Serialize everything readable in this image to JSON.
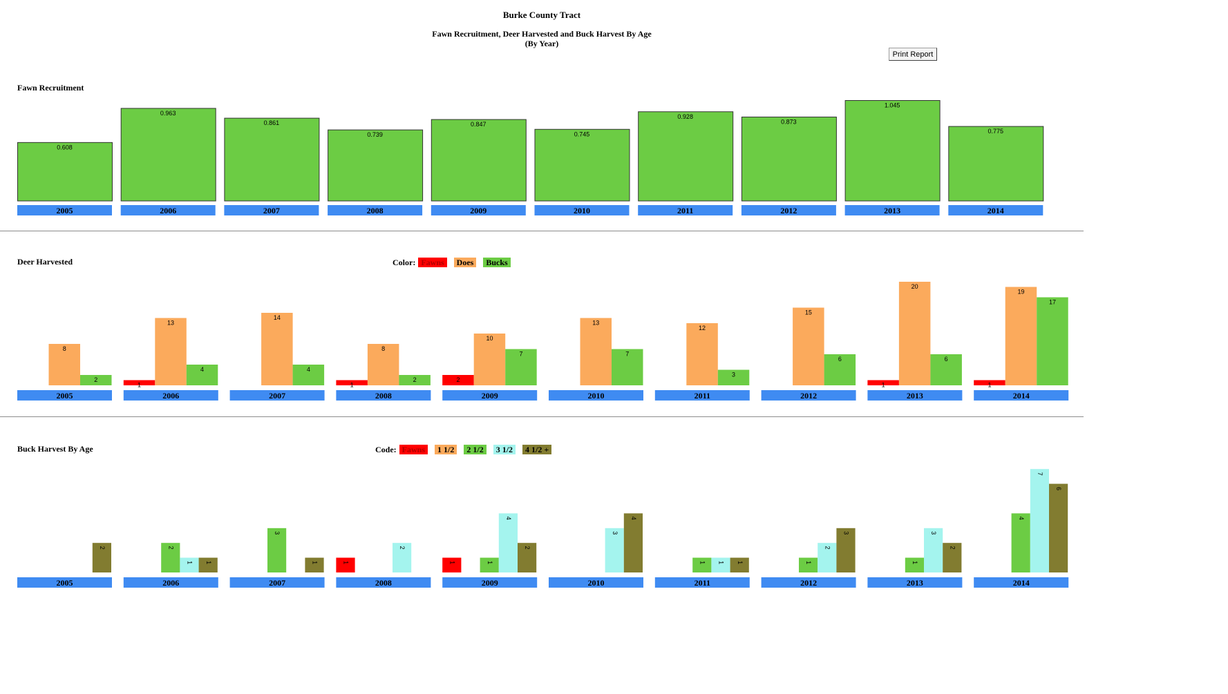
{
  "header": {
    "title": "Burke County Tract",
    "subtitle": "Fawn Recruitment, Deer Harvested and Buck Harvest By Age",
    "subtitle2": "(By Year)",
    "print_label": "Print Report"
  },
  "legends": {
    "harvest": {
      "title": "Color:",
      "items": [
        {
          "label": "Fawns",
          "color": "#ff0000",
          "text_color": "#b00000"
        },
        {
          "label": "Does",
          "color": "#fbaa5c",
          "text_color": "#000000"
        },
        {
          "label": "Bucks",
          "color": "#6ccc44",
          "text_color": "#000000"
        }
      ]
    },
    "age": {
      "title": "Code:",
      "items": [
        {
          "label": "Fawns",
          "color": "#ff0000",
          "text_color": "#b00000"
        },
        {
          "label": "1 1/2",
          "color": "#fbaa5c",
          "text_color": "#000000"
        },
        {
          "label": "2 1/2",
          "color": "#6ccc44",
          "text_color": "#000000"
        },
        {
          "label": "3 1/2",
          "color": "#a4f4ee",
          "text_color": "#000000"
        },
        {
          "label": "4 1/2 +",
          "color": "#827c30",
          "text_color": "#000000"
        }
      ]
    }
  },
  "colors": {
    "fawn_bar": "#6ccc44",
    "year_bar": "#3f8bf2",
    "bar_outline": "#333333"
  },
  "chart_data": [
    {
      "type": "bar",
      "title": "Fawn Recruitment",
      "categories": [
        "2005",
        "2006",
        "2007",
        "2008",
        "2009",
        "2010",
        "2011",
        "2012",
        "2013",
        "2014"
      ],
      "values": [
        0.608,
        0.963,
        0.861,
        0.739,
        0.847,
        0.745,
        0.928,
        0.873,
        1.045,
        0.775
      ],
      "value_labels": [
        "0.608",
        "0.963",
        "0.861",
        "0.739",
        "0.847",
        "0.745",
        "0.928",
        "0.873",
        "1.045",
        "0.775"
      ]
    },
    {
      "type": "bar",
      "title": "Deer Harvested",
      "categories": [
        "2005",
        "2006",
        "2007",
        "2008",
        "2009",
        "2010",
        "2011",
        "2012",
        "2013",
        "2014"
      ],
      "series": [
        {
          "name": "Fawns",
          "values": [
            0,
            1,
            0,
            1,
            2,
            0,
            0,
            0,
            1,
            1
          ]
        },
        {
          "name": "Does",
          "values": [
            8,
            13,
            14,
            8,
            10,
            13,
            12,
            15,
            20,
            19
          ]
        },
        {
          "name": "Bucks",
          "values": [
            2,
            4,
            4,
            2,
            7,
            7,
            3,
            6,
            6,
            17
          ]
        }
      ]
    },
    {
      "type": "bar",
      "title": "Buck Harvest By Age",
      "categories": [
        "2005",
        "2006",
        "2007",
        "2008",
        "2009",
        "2010",
        "2011",
        "2012",
        "2013",
        "2014"
      ],
      "series": [
        {
          "name": "Fawns",
          "values": [
            0,
            0,
            0,
            1,
            1,
            0,
            0,
            0,
            0,
            0
          ]
        },
        {
          "name": "1 1/2",
          "values": [
            0,
            0,
            0,
            0,
            0,
            0,
            0,
            0,
            0,
            0
          ]
        },
        {
          "name": "2 1/2",
          "values": [
            0,
            2,
            3,
            0,
            1,
            0,
            1,
            1,
            1,
            4
          ]
        },
        {
          "name": "3 1/2",
          "values": [
            0,
            1,
            0,
            2,
            4,
            3,
            1,
            2,
            3,
            7
          ]
        },
        {
          "name": "4 1/2 +",
          "values": [
            2,
            1,
            1,
            0,
            2,
            4,
            1,
            3,
            2,
            6
          ]
        }
      ]
    }
  ]
}
